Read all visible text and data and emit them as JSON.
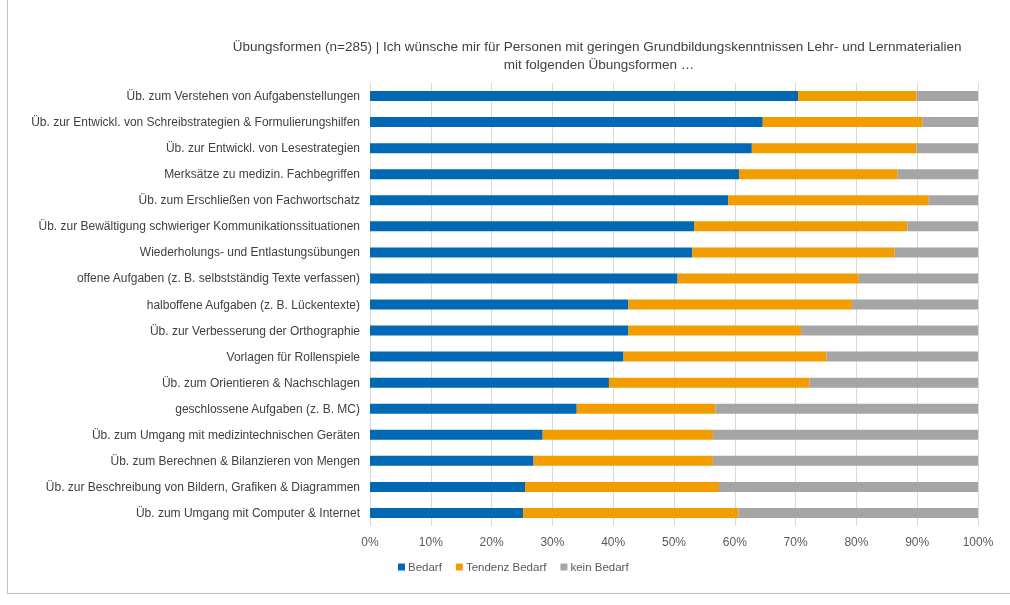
{
  "chart_data": {
    "type": "bar",
    "orientation": "horizontal",
    "stacked": true,
    "title": "Übungsformen (n=285) | Ich wünsche mir für Personen mit geringen Grundbildungskenntnissen Lehr- und Lernmaterialien mit folgenden Übungsformen …",
    "categories": [
      "Üb. zum Verstehen von Aufgabenstellungen",
      "Üb. zur Entwickl. von Schreibstrategien & Formulierungshilfen",
      "Üb. zur Entwickl. von Lesestrategien",
      "Merksätze zu medizin. Fachbegriffen",
      "Üb. zum Erschließen von Fachwortschatz",
      "Üb. zur Bewältigung schwieriger Kommunikationssituationen",
      "Wiederholungs- und Entlastungsübungen",
      "offene Aufgaben (z. B. selbstständig Texte verfassen)",
      "halboffene Aufgaben (z. B. Lückentexte)",
      "Üb. zur Verbesserung der Orthographie",
      "Vorlagen für Rollenspiele",
      "Üb. zum Orientieren & Nachschlagen",
      "geschlossene Aufgaben (z. B. MC)",
      "Üb. zum Umgang mit medizintechnischen Geräten",
      "Üb. zum Berechnen & Bilanzieren von Mengen",
      "Üb. zur Beschreibung von Bildern, Grafiken & Diagrammen",
      "Üb. zum Umgang mit Computer & Internet"
    ],
    "series": [
      {
        "name": "Bedarf",
        "color": "#0068b4",
        "values": [
          70.4,
          64.6,
          62.8,
          60.7,
          58.9,
          53.3,
          53.0,
          50.6,
          42.5,
          42.5,
          41.7,
          39.3,
          34.0,
          28.4,
          26.9,
          25.5,
          25.2
        ]
      },
      {
        "name": "Tendenz Bedarf",
        "color": "#f39c00",
        "values": [
          19.5,
          26.3,
          27.1,
          26.1,
          33.0,
          35.1,
          33.3,
          29.8,
          36.8,
          28.4,
          33.4,
          33.0,
          22.8,
          28.0,
          29.5,
          31.9,
          35.4
        ]
      },
      {
        "name": "kein Bedarf",
        "color": "#a5a5a5",
        "values": [
          10.1,
          9.1,
          10.1,
          13.2,
          8.1,
          11.6,
          13.7,
          19.6,
          20.7,
          29.1,
          24.9,
          27.7,
          43.2,
          43.6,
          43.6,
          42.6,
          39.4
        ]
      }
    ],
    "xlim": [
      0,
      100
    ],
    "xticks": [
      {
        "value": 0,
        "label": "0%"
      },
      {
        "value": 10,
        "label": "10%"
      },
      {
        "value": 20,
        "label": "20%"
      },
      {
        "value": 30,
        "label": "30%"
      },
      {
        "value": 40,
        "label": "40%"
      },
      {
        "value": 50,
        "label": "50%"
      },
      {
        "value": 60,
        "label": "60%"
      },
      {
        "value": 70,
        "label": "70%"
      },
      {
        "value": 80,
        "label": "80%"
      },
      {
        "value": 90,
        "label": "90%"
      },
      {
        "value": 100,
        "label": "100%"
      }
    ],
    "grid": "x",
    "legend": "bottom"
  }
}
